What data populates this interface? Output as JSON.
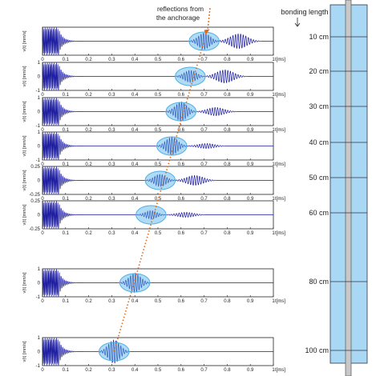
{
  "chart_data": {
    "type": "line",
    "annotation": {
      "line1": "reflections from",
      "line2": "the anchorage"
    },
    "bonding_header": "bonding length",
    "x_unit": "t[ms]",
    "xlim": [
      0,
      1
    ],
    "x_ticks": [
      "0",
      "0.1",
      "0.2",
      "0.3",
      "0.4",
      "0.5",
      "0.6",
      "0.7",
      "0.8",
      "0.9",
      "1"
    ],
    "y_label": "v(t) [mm/s]",
    "panels": [
      {
        "bonding_length": "10 cm",
        "reflection_center_ms": 0.7,
        "ylim": [
          -1,
          1
        ],
        "y_ticks": [],
        "burst": 0.6,
        "late": 0.9
      },
      {
        "bonding_length": "20 cm",
        "reflection_center_ms": 0.64,
        "ylim": [
          -1,
          1
        ],
        "y_ticks": [
          "1",
          "0",
          "-1"
        ],
        "burst": 0.45,
        "late": 0.8
      },
      {
        "bonding_length": "30 cm",
        "reflection_center_ms": 0.6,
        "ylim": [
          -1,
          1
        ],
        "y_ticks": [
          "1",
          "0",
          "-1"
        ],
        "burst": 0.7,
        "late": 0.5
      },
      {
        "bonding_length": "40 cm",
        "reflection_center_ms": 0.56,
        "ylim": [
          -1,
          1
        ],
        "y_ticks": [
          "1",
          "0",
          "-1"
        ],
        "burst": 0.65,
        "late": 0.3
      },
      {
        "bonding_length": "50 cm",
        "reflection_center_ms": 0.51,
        "ylim": [
          -0.25,
          0.25
        ],
        "y_ticks": [
          "0.25",
          "0",
          "-0.25"
        ],
        "burst": 0.45,
        "late": 0.6
      },
      {
        "bonding_length": "60 cm",
        "reflection_center_ms": 0.47,
        "ylim": [
          -0.25,
          0.25
        ],
        "y_ticks": [
          "0.25",
          "0",
          "-0.25"
        ],
        "burst": 0.3,
        "late": 0.3
      },
      {
        "bonding_length": "80 cm",
        "reflection_center_ms": 0.4,
        "ylim": [
          -1,
          1
        ],
        "y_ticks": [
          "1",
          "0",
          "-1"
        ],
        "burst": 0.7,
        "late": 0.0
      },
      {
        "bonding_length": "100 cm",
        "reflection_center_ms": 0.31,
        "ylim": [
          -1,
          1
        ],
        "y_ticks": [
          "1",
          "0",
          "-1"
        ],
        "burst": 0.85,
        "late": 0.0
      }
    ],
    "colors": {
      "signal": "#1a1aa0",
      "ellipse": "#4fb0e6",
      "trendline": "#e06a1a",
      "anchor": "#a9d8f5",
      "tendon": "#c8c8c8"
    }
  }
}
